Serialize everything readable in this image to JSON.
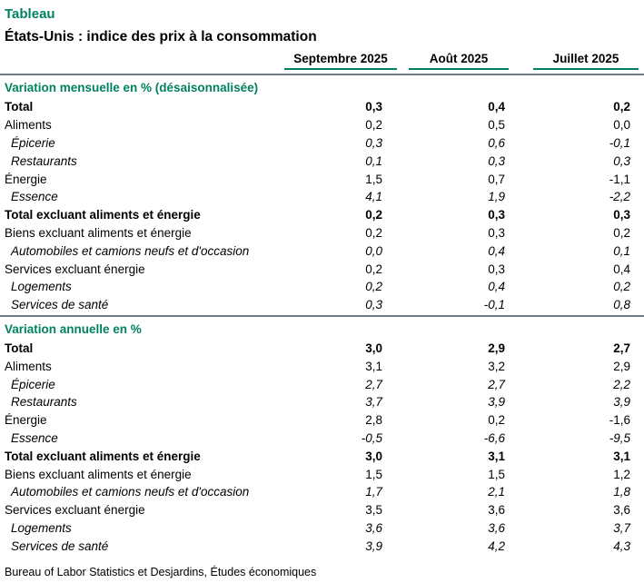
{
  "page": {
    "eyebrow": "Tableau",
    "title": "États-Unis : indice des prix à la consommation",
    "footer": "Bureau of Labor Statistics et Desjardins, Études économiques"
  },
  "colors": {
    "accent_green": "#00815F",
    "divider_gray": "#6F7D8C"
  },
  "chart_data": {
    "type": "table",
    "columns": [
      "Septembre 2025",
      "Août 2025",
      "Juillet 2025"
    ],
    "sections": [
      {
        "title": "Variation mensuelle en % (désaisonnalisée)",
        "rows": [
          {
            "label": "Total",
            "style": "bold",
            "values": [
              "0,3",
              "0,4",
              "0,2"
            ]
          },
          {
            "label": "Aliments",
            "style": "normal",
            "values": [
              "0,2",
              "0,5",
              "0,0"
            ]
          },
          {
            "label": "Épicerie",
            "style": "italic",
            "values": [
              "0,3",
              "0,6",
              "-0,1"
            ]
          },
          {
            "label": "Restaurants",
            "style": "italic",
            "values": [
              "0,1",
              "0,3",
              "0,3"
            ]
          },
          {
            "label": "Énergie",
            "style": "normal",
            "values": [
              "1,5",
              "0,7",
              "-1,1"
            ]
          },
          {
            "label": "Essence",
            "style": "italic",
            "values": [
              "4,1",
              "1,9",
              "-2,2"
            ]
          },
          {
            "label": "Total excluant aliments et énergie",
            "style": "bold",
            "values": [
              "0,2",
              "0,3",
              "0,3"
            ]
          },
          {
            "label": "Biens excluant aliments et énergie",
            "style": "normal",
            "values": [
              "0,2",
              "0,3",
              "0,2"
            ]
          },
          {
            "label": "Automobiles et camions neufs et d'occasion",
            "style": "italic",
            "values": [
              "0,0",
              "0,4",
              "0,1"
            ]
          },
          {
            "label": "Services excluant énergie",
            "style": "normal",
            "values": [
              "0,2",
              "0,3",
              "0,4"
            ]
          },
          {
            "label": "Logements",
            "style": "italic",
            "values": [
              "0,2",
              "0,4",
              "0,2"
            ]
          },
          {
            "label": "Services de santé",
            "style": "italic",
            "values": [
              "0,3",
              "-0,1",
              "0,8"
            ]
          }
        ]
      },
      {
        "title": "Variation annuelle en %",
        "rows": [
          {
            "label": "Total",
            "style": "bold",
            "values": [
              "3,0",
              "2,9",
              "2,7"
            ]
          },
          {
            "label": "Aliments",
            "style": "normal",
            "values": [
              "3,1",
              "3,2",
              "2,9"
            ]
          },
          {
            "label": "Épicerie",
            "style": "italic",
            "values": [
              "2,7",
              "2,7",
              "2,2"
            ]
          },
          {
            "label": "Restaurants",
            "style": "italic",
            "values": [
              "3,7",
              "3,9",
              "3,9"
            ]
          },
          {
            "label": "Énergie",
            "style": "normal",
            "values": [
              "2,8",
              "0,2",
              "-1,6"
            ]
          },
          {
            "label": "Essence",
            "style": "italic",
            "values": [
              "-0,5",
              "-6,6",
              "-9,5"
            ]
          },
          {
            "label": "Total excluant aliments et énergie",
            "style": "bold",
            "values": [
              "3,0",
              "3,1",
              "3,1"
            ]
          },
          {
            "label": "Biens excluant aliments et énergie",
            "style": "normal",
            "values": [
              "1,5",
              "1,5",
              "1,2"
            ]
          },
          {
            "label": "Automobiles et camions neufs et d'occasion",
            "style": "italic",
            "values": [
              "1,7",
              "2,1",
              "1,8"
            ]
          },
          {
            "label": "Services excluant énergie",
            "style": "normal",
            "values": [
              "3,5",
              "3,6",
              "3,6"
            ]
          },
          {
            "label": "Logements",
            "style": "italic",
            "values": [
              "3,6",
              "3,6",
              "3,7"
            ]
          },
          {
            "label": "Services de santé",
            "style": "italic",
            "values": [
              "3,9",
              "4,2",
              "4,3"
            ]
          }
        ]
      }
    ]
  }
}
